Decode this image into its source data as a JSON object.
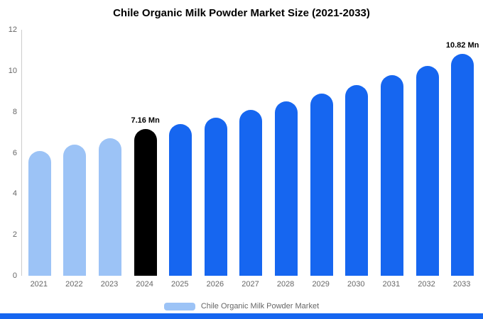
{
  "title": "Chile Organic Milk Powder Market Size (2021-2033)",
  "legend": {
    "label": "Chile Organic Milk Powder Market",
    "swatch_color": "#9CC3F6"
  },
  "colors": {
    "light_bar": "#9CC3F6",
    "primary_bar": "#1666F0",
    "highlight_bar": "#000000",
    "bottom_strip": "#1666F0",
    "axis_text": "#666666",
    "axis_line": "#cccccc"
  },
  "chart_data": {
    "type": "bar",
    "title": "Chile Organic Milk Powder Market Size (2021-2033)",
    "xlabel": "",
    "ylabel": "",
    "ylim": [
      0,
      12
    ],
    "yticks": [
      0,
      2,
      4,
      6,
      8,
      10,
      12
    ],
    "grid": false,
    "legend_position": "bottom",
    "categories": [
      "2021",
      "2022",
      "2023",
      "2024",
      "2025",
      "2026",
      "2027",
      "2028",
      "2029",
      "2030",
      "2031",
      "2032",
      "2033"
    ],
    "values": [
      6.1,
      6.4,
      6.7,
      7.16,
      7.4,
      7.7,
      8.1,
      8.5,
      8.9,
      9.3,
      9.8,
      10.25,
      10.82
    ],
    "bar_colors": [
      "light",
      "light",
      "light",
      "highlight",
      "primary",
      "primary",
      "primary",
      "primary",
      "primary",
      "primary",
      "primary",
      "primary",
      "primary"
    ],
    "annotations": [
      {
        "category": "2024",
        "text": "7.16 Mn"
      },
      {
        "category": "2033",
        "text": "10.82 Mn"
      }
    ]
  }
}
